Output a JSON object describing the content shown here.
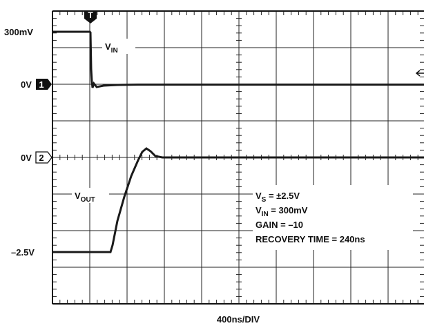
{
  "scope": {
    "channel_labels": [
      {
        "level": "300mV"
      },
      {
        "level": "0V",
        "marker": "1"
      },
      {
        "level": "0V",
        "marker": "2"
      },
      {
        "level": "–2.5V"
      }
    ],
    "trigger_marker": "T",
    "trace_labels": [
      {
        "main": "V",
        "sub": "IN"
      },
      {
        "main": "V",
        "sub": "OUT"
      }
    ],
    "notes": [
      {
        "main": "V",
        "sub": "S",
        "rest": " = ±2.5V"
      },
      {
        "main": "V",
        "sub": "IN",
        "rest": " = 300mV"
      },
      {
        "main": "GAIN = –10"
      },
      {
        "main": "RECOVERY TIME = 240ns"
      }
    ],
    "time_scale": "400ns/DIV"
  }
}
